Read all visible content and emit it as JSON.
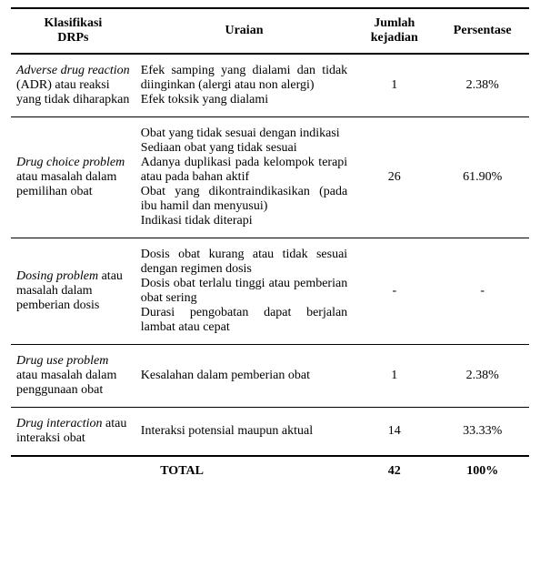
{
  "headers": {
    "klasifikasi_line1": "Klasifikasi",
    "klasifikasi_line2": "DRPs",
    "uraian": "Uraian",
    "jumlah_line1": "Jumlah",
    "jumlah_line2": "kejadian",
    "persentase": "Persentase"
  },
  "rows": [
    {
      "klas_italic": "Adverse drug reaction",
      "klas_plain": " (ADR) atau reaksi yang tidak diharapkan",
      "uraian_items": [
        "Efek samping yang dialami dan tidak diinginkan (alergi atau non alergi)",
        "Efek toksik yang dialami"
      ],
      "jumlah": "1",
      "persen": "2.38%"
    },
    {
      "klas_italic": "Drug choice problem",
      "klas_plain": " atau masalah dalam pemilihan obat",
      "uraian_items": [
        "Obat yang tidak sesuai dengan indikasi",
        "Sediaan obat yang tidak sesuai",
        "Adanya duplikasi pada kelompok terapi atau pada bahan aktif",
        "Obat yang dikontraindikasikan (pada ibu hamil dan menyusui)",
        "Indikasi tidak diterapi"
      ],
      "jumlah": "26",
      "persen": "61.90%"
    },
    {
      "klas_italic": "Dosing problem",
      "klas_plain": " atau masalah dalam pemberian dosis",
      "uraian_items": [
        "Dosis obat kurang atau tidak sesuai dengan regimen dosis",
        "Dosis obat terlalu tinggi atau pemberian obat sering",
        "Durasi pengobatan dapat berjalan lambat atau cepat"
      ],
      "jumlah": "-",
      "persen": "-"
    },
    {
      "klas_italic": "Drug use problem",
      "klas_plain": " atau masalah dalam penggunaan obat",
      "uraian_items": [
        "Kesalahan dalam pemberian obat"
      ],
      "jumlah": "1",
      "persen": "2.38%"
    },
    {
      "klas_italic": "Drug interaction",
      "klas_plain": " atau interaksi obat",
      "uraian_items": [
        "Interaksi potensial maupun aktual"
      ],
      "jumlah": "14",
      "persen": "33.33%"
    }
  ],
  "footer": {
    "total_label": "TOTAL",
    "total_jumlah": "42",
    "total_persen": "100%"
  }
}
